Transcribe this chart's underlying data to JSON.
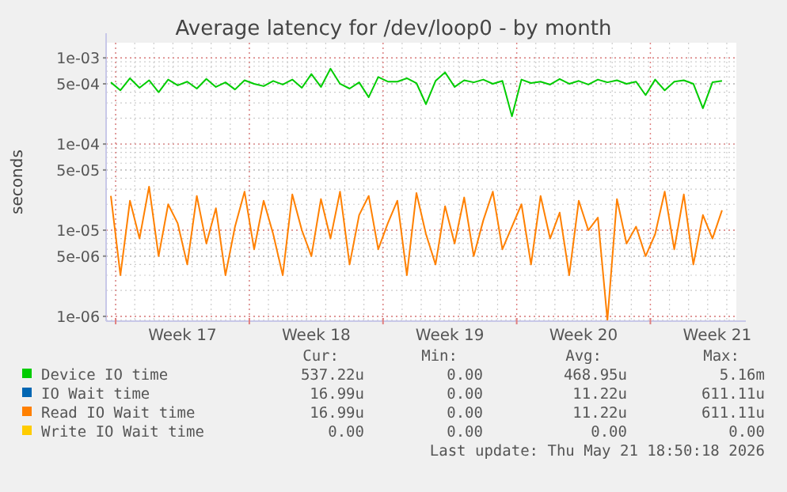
{
  "chart_data": {
    "type": "line",
    "title": "Average latency for /dev/loop0 - by month",
    "ylabel": "seconds",
    "log": "y",
    "grid": true,
    "legend": "bottom",
    "marker": "none",
    "line_style": "solid",
    "x": [
      "2026-04-19T18:00",
      "2026-04-20T06:00",
      "2026-04-20T18:00",
      "2026-04-21T06:00",
      "2026-04-21T18:00",
      "2026-04-22T06:00",
      "2026-04-22T18:00",
      "2026-04-23T06:00",
      "2026-04-23T18:00",
      "2026-04-24T06:00",
      "2026-04-24T18:00",
      "2026-04-25T06:00",
      "2026-04-25T18:00",
      "2026-04-26T06:00",
      "2026-04-26T18:00",
      "2026-04-27T06:00",
      "2026-04-27T18:00",
      "2026-04-28T06:00",
      "2026-04-28T18:00",
      "2026-04-29T06:00",
      "2026-04-29T18:00",
      "2026-04-30T06:00",
      "2026-04-30T18:00",
      "2026-05-01T06:00",
      "2026-05-01T18:00",
      "2026-05-02T06:00",
      "2026-05-02T18:00",
      "2026-05-03T06:00",
      "2026-05-03T18:00",
      "2026-05-04T06:00",
      "2026-05-04T18:00",
      "2026-05-05T06:00",
      "2026-05-05T18:00",
      "2026-05-06T06:00",
      "2026-05-06T18:00",
      "2026-05-07T06:00",
      "2026-05-07T18:00",
      "2026-05-08T06:00",
      "2026-05-08T18:00",
      "2026-05-09T06:00",
      "2026-05-09T18:00",
      "2026-05-10T06:00",
      "2026-05-10T18:00",
      "2026-05-11T06:00",
      "2026-05-11T18:00",
      "2026-05-12T06:00",
      "2026-05-12T18:00",
      "2026-05-13T06:00",
      "2026-05-13T18:00",
      "2026-05-14T06:00",
      "2026-05-14T18:00",
      "2026-05-15T06:00",
      "2026-05-15T18:00",
      "2026-05-16T06:00",
      "2026-05-16T18:00",
      "2026-05-17T06:00",
      "2026-05-17T18:00",
      "2026-05-18T06:00",
      "2026-05-18T18:00",
      "2026-05-19T06:00",
      "2026-05-19T18:00",
      "2026-05-20T06:00",
      "2026-05-20T18:00",
      "2026-05-21T06:00",
      "2026-05-21T18:00"
    ],
    "xlim": [
      "2026-04-19T12:00",
      "2026-05-22T12:00"
    ],
    "xticks": [
      {
        "value": "2026-04-20",
        "label": null
      },
      {
        "value": "2026-04-23T12:00",
        "label": "Week 17"
      },
      {
        "value": "2026-04-27",
        "label": null
      },
      {
        "value": "2026-04-30T12:00",
        "label": "Week 18"
      },
      {
        "value": "2026-05-04",
        "label": null
      },
      {
        "value": "2026-05-07T12:00",
        "label": "Week 19"
      },
      {
        "value": "2026-05-11",
        "label": null
      },
      {
        "value": "2026-05-14T12:00",
        "label": "Week 20"
      },
      {
        "value": "2026-05-18",
        "label": null
      },
      {
        "value": "2026-05-21T12:00",
        "label": "Week 21"
      }
    ],
    "ylim": [
      8.8e-07,
      0.0015
    ],
    "yticks": [
      {
        "value": 1e-06,
        "label": "1e-06"
      },
      {
        "value": 5e-06,
        "label": "5e-06"
      },
      {
        "value": 1e-05,
        "label": "1e-05"
      },
      {
        "value": 5e-05,
        "label": "5e-05"
      },
      {
        "value": 0.0001,
        "label": "1e-04"
      },
      {
        "value": 0.0005,
        "label": "5e-04"
      },
      {
        "value": 0.001,
        "label": "1e-03"
      }
    ],
    "series": [
      {
        "name": "Device IO time",
        "color": "#00cc00",
        "values": [
          0.00052,
          0.00042,
          0.00058,
          0.00045,
          0.00055,
          0.0004,
          0.00056,
          0.00048,
          0.00053,
          0.00044,
          0.00057,
          0.00046,
          0.00052,
          0.00043,
          0.00055,
          0.0005,
          0.00047,
          0.00054,
          0.00049,
          0.00056,
          0.00045,
          0.00065,
          0.00046,
          0.00075,
          0.0005,
          0.00044,
          0.00052,
          0.00035,
          0.0006,
          0.00053,
          0.00053,
          0.00058,
          0.00051,
          0.00029,
          0.00054,
          0.00068,
          0.00046,
          0.00055,
          0.00052,
          0.00056,
          0.0005,
          0.00054,
          0.00021,
          0.00056,
          0.00051,
          0.00053,
          0.00049,
          0.00057,
          0.0005,
          0.00054,
          0.00049,
          0.00056,
          0.00052,
          0.00055,
          0.0005,
          0.00053,
          0.00037,
          0.00056,
          0.00042,
          0.00053,
          0.00055,
          0.0005,
          0.00026,
          0.00052,
          0.00054
        ]
      },
      {
        "name": "IO Wait time",
        "color": "#0066b3",
        "values": [
          null,
          null,
          null,
          null,
          null,
          null,
          null,
          null,
          null,
          null,
          null,
          null,
          null,
          null,
          null,
          null,
          null,
          null,
          null,
          null,
          null,
          null,
          null,
          null,
          null,
          null,
          null,
          null,
          null,
          null,
          null,
          null,
          null,
          null,
          null,
          null,
          null,
          null,
          null,
          null,
          null,
          null,
          null,
          null,
          null,
          null,
          null,
          null,
          null,
          null,
          null,
          null,
          null,
          null,
          null,
          null,
          null,
          null,
          null,
          null,
          null,
          null,
          null,
          null,
          null
        ]
      },
      {
        "name": "Read IO Wait time",
        "color": "#ff8000",
        "values": [
          2.5e-05,
          3e-06,
          2.2e-05,
          8e-06,
          3.2e-05,
          5e-06,
          2e-05,
          1.2e-05,
          4e-06,
          2.5e-05,
          7e-06,
          1.8e-05,
          3e-06,
          1.1e-05,
          2.8e-05,
          6e-06,
          2.2e-05,
          9e-06,
          3e-06,
          2.6e-05,
          1e-05,
          5e-06,
          2.3e-05,
          8e-06,
          2.8e-05,
          4e-06,
          1.5e-05,
          2.5e-05,
          6e-06,
          1.2e-05,
          2.2e-05,
          3e-06,
          2.7e-05,
          9e-06,
          4e-06,
          1.9e-05,
          7e-06,
          2.4e-05,
          5e-06,
          1.3e-05,
          2.8e-05,
          6e-06,
          1.1e-05,
          2e-05,
          4e-06,
          2.5e-05,
          8e-06,
          1.6e-05,
          3e-06,
          2.2e-05,
          1e-05,
          1.4e-05,
          9e-07,
          2.3e-05,
          7e-06,
          1.1e-05,
          5e-06,
          9e-06,
          2.8e-05,
          6e-06,
          2.6e-05,
          4e-06,
          1.5e-05,
          8e-06,
          1.7e-05
        ]
      },
      {
        "name": "Write IO Wait time",
        "color": "#ffcc00",
        "values": [
          null,
          null,
          null,
          null,
          null,
          null,
          null,
          null,
          null,
          null,
          null,
          null,
          null,
          null,
          null,
          null,
          null,
          null,
          null,
          null,
          null,
          null,
          null,
          null,
          null,
          null,
          null,
          null,
          null,
          null,
          null,
          null,
          null,
          null,
          null,
          null,
          null,
          null,
          null,
          null,
          null,
          null,
          null,
          null,
          null,
          null,
          null,
          null,
          null,
          null,
          null,
          null,
          null,
          null,
          null,
          null,
          null,
          null,
          null,
          null,
          null,
          null,
          null,
          null,
          null
        ]
      }
    ],
    "annotations": [
      "Cur:",
      "Min:",
      "Avg:",
      "Max:",
      "537.22u",
      "0.00",
      "468.95u",
      "5.16m",
      "16.99u",
      "0.00",
      "11.22u",
      "611.11u",
      "16.99u",
      "0.00",
      "11.22u",
      "611.11u",
      "0.00",
      "0.00",
      "0.00",
      "0.00",
      "Last update: Thu May 21 18:50:18 2026"
    ]
  }
}
